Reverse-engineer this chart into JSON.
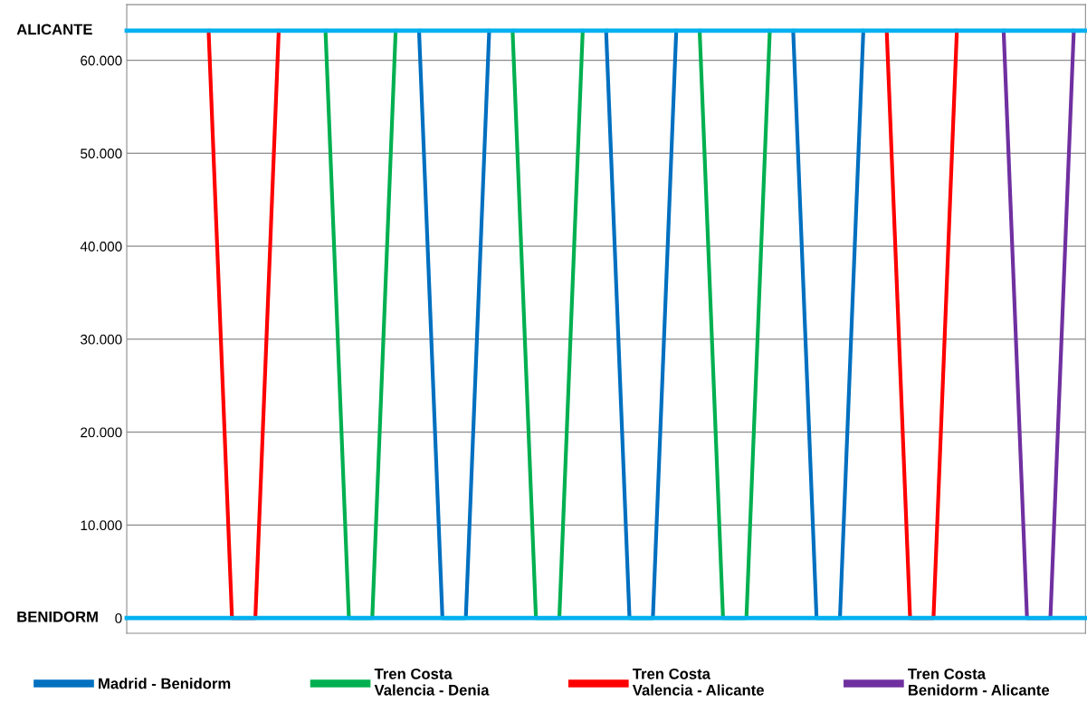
{
  "chart_data": {
    "type": "line",
    "tick_labels": "y",
    "ylim": [
      -1650,
      66000
    ],
    "categories": [
      null,
      null,
      null,
      null,
      null,
      null,
      null,
      null,
      null,
      null,
      null,
      null,
      null,
      null,
      null,
      null,
      null,
      null,
      null,
      null,
      null,
      null,
      null,
      null,
      null,
      null,
      null,
      null,
      null,
      null,
      null,
      null,
      null,
      null,
      null,
      null,
      null,
      null,
      null,
      null,
      null
    ],
    "yticks": [
      {
        "value": 0,
        "label": "0"
      },
      {
        "value": 10000,
        "label": "10.000"
      },
      {
        "value": 20000,
        "label": "20.000"
      },
      {
        "value": 30000,
        "label": "30.000"
      },
      {
        "value": 40000,
        "label": "40.000"
      },
      {
        "value": 50000,
        "label": "50.000"
      },
      {
        "value": 60000,
        "label": "60.000"
      }
    ],
    "grid": "y",
    "legend": "bottom",
    "line_style": "solid",
    "marker": "none",
    "series": [
      {
        "name": "Madrid - Benidorm",
        "color": "#0070c0",
        "values": [
          null,
          null,
          null,
          null,
          null,
          null,
          null,
          null,
          null,
          null,
          null,
          null,
          63200,
          0,
          0,
          63200,
          null,
          null,
          null,
          null,
          63200,
          0,
          0,
          63200,
          null,
          null,
          null,
          null,
          63200,
          0,
          0,
          63200,
          null,
          null,
          null,
          null,
          null,
          null,
          null,
          null,
          null
        ]
      },
      {
        "name": "Tren Costa\nValencia - Denia",
        "color": "#00b050",
        "values": [
          null,
          null,
          null,
          null,
          null,
          null,
          null,
          null,
          63200,
          0,
          0,
          63200,
          null,
          null,
          null,
          null,
          63200,
          0,
          0,
          63200,
          null,
          null,
          null,
          null,
          63200,
          0,
          0,
          63200,
          null,
          null,
          null,
          null,
          null,
          null,
          null,
          null,
          null,
          null,
          null,
          null,
          null
        ]
      },
      {
        "name": "Tren Costa\nValencia - Alicante",
        "color": "#ff0000",
        "values": [
          null,
          null,
          null,
          63200,
          0,
          0,
          63200,
          null,
          null,
          null,
          null,
          null,
          null,
          null,
          null,
          null,
          null,
          null,
          null,
          null,
          null,
          null,
          null,
          null,
          null,
          null,
          null,
          null,
          null,
          null,
          null,
          null,
          63200,
          0,
          0,
          63200,
          null,
          null,
          null,
          null,
          null
        ]
      },
      {
        "name": "Tren Costa\nBenidorm - Alicante",
        "color": "#7030a0",
        "values": [
          null,
          null,
          null,
          null,
          null,
          null,
          null,
          null,
          null,
          null,
          null,
          null,
          null,
          null,
          null,
          null,
          null,
          null,
          null,
          null,
          null,
          null,
          null,
          null,
          null,
          null,
          null,
          null,
          null,
          null,
          null,
          null,
          null,
          null,
          null,
          null,
          null,
          63200,
          0,
          0,
          63200
        ]
      }
    ],
    "ref_lines": [
      {
        "axis": "y",
        "value": 63200,
        "label": "ALICANTE",
        "color": "#00b0f0"
      },
      {
        "axis": "y",
        "value": 0,
        "label": "BENIDORM",
        "color": "#00b0f0"
      }
    ]
  }
}
